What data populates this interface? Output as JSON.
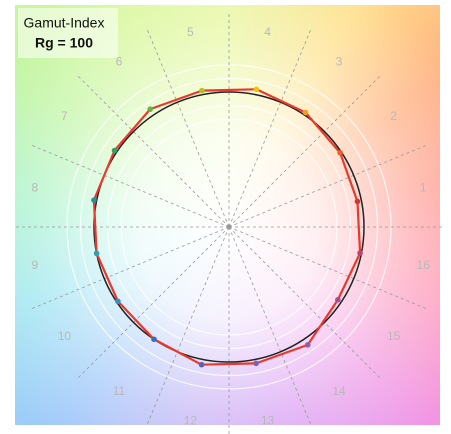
{
  "chart_data": {
    "type": "radar",
    "title": "Gamut-Index",
    "subtitle": "Rg = 100",
    "categories": [
      "1",
      "2",
      "3",
      "4",
      "5",
      "6",
      "7",
      "8",
      "9",
      "10",
      "11",
      "12",
      "13",
      "14",
      "15",
      "16"
    ],
    "values": [
      0.97,
      0.99,
      1.02,
      1.04,
      1.03,
      1.05,
      1.02,
      1.02,
      1.0,
      0.99,
      1.0,
      1.04,
      1.03,
      1.05,
      0.97,
      0.99
    ],
    "reference": 1,
    "color": "#e8392c",
    "reference_color": "#222222",
    "marker_colors": [
      "#e03030",
      "#e8602a",
      "#f0a020",
      "#f0c010",
      "#b8c020",
      "#70b040",
      "#30a060",
      "#309090",
      "#30a0b0",
      "#3090c0",
      "#3070c0",
      "#6060b0",
      "#8060b0",
      "#9060a8",
      "#a050a0",
      "#c04070"
    ]
  }
}
